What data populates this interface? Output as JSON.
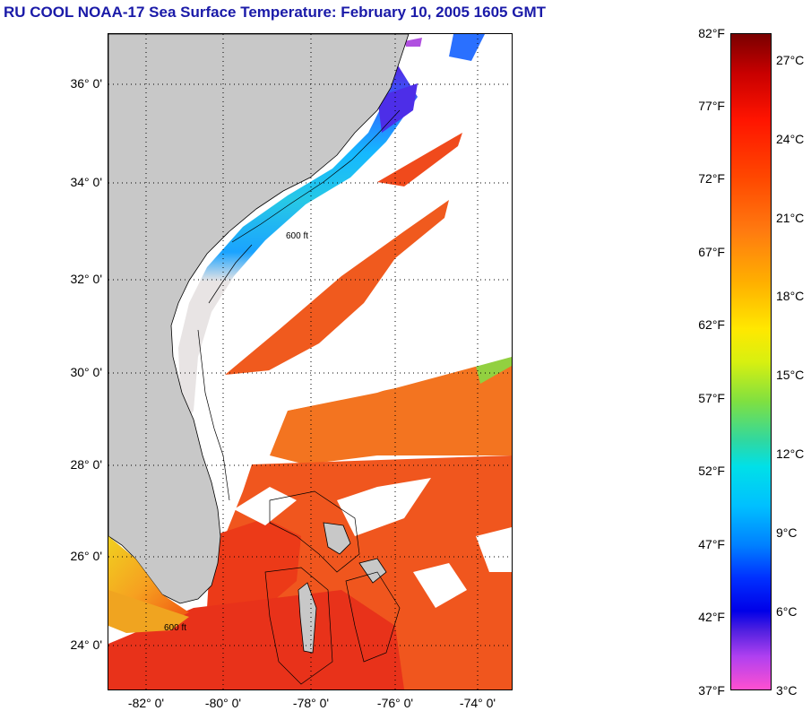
{
  "title": "RU COOL  NOAA-17  Sea Surface Temperature:  February 10, 2005 1605 GMT",
  "map": {
    "lat_labels": [
      "36° 0'",
      "34° 0'",
      "32° 0'",
      "30° 0'",
      "28° 0'",
      "26° 0'",
      "24° 0'"
    ],
    "lon_labels": [
      "-82° 0'",
      "-80° 0'",
      "-78° 0'",
      "-76° 0'",
      "-74° 0'"
    ],
    "contour_label": "600 ft",
    "colors": {
      "land": "#c8c8c8",
      "cloud": "#ffffff"
    }
  },
  "colorbar": {
    "fahrenheit": [
      "82°F",
      "77°F",
      "72°F",
      "67°F",
      "62°F",
      "57°F",
      "52°F",
      "47°F",
      "42°F",
      "37°F"
    ],
    "celsius": [
      "27°C",
      "24°C",
      "21°C",
      "18°C",
      "15°C",
      "12°C",
      "9°C",
      "6°C",
      "3°C"
    ]
  }
}
